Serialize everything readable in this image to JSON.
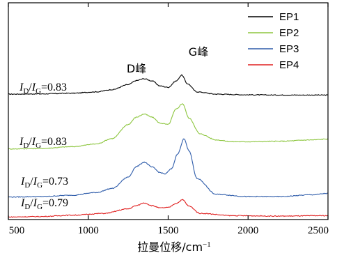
{
  "chart_data": {
    "type": "line",
    "xlabel": "拉曼位移/cm",
    "xlabel_sup": "−1",
    "ylabel": "",
    "xlim": [
      500,
      2500
    ],
    "x_ticks": [
      500,
      1000,
      1500,
      2000,
      2500
    ],
    "y_ticks_shown": false,
    "legend_position": "top-right",
    "peaks": [
      {
        "label": "D峰",
        "x": 1350
      },
      {
        "label": "G峰",
        "x": 1585
      }
    ],
    "series": [
      {
        "name": "EP1",
        "color": "#000000",
        "ratio_label": {
          "i": "I",
          "d": "D",
          "slash": "/",
          "g": "G",
          "value": "=0.83"
        },
        "points": [
          [
            500,
            0.03
          ],
          [
            700,
            0.035
          ],
          [
            900,
            0.05
          ],
          [
            1050,
            0.08
          ],
          [
            1150,
            0.13
          ],
          [
            1250,
            0.24
          ],
          [
            1300,
            0.33
          ],
          [
            1350,
            0.37
          ],
          [
            1400,
            0.32
          ],
          [
            1450,
            0.21
          ],
          [
            1500,
            0.18
          ],
          [
            1550,
            0.32
          ],
          [
            1585,
            0.45
          ],
          [
            1620,
            0.26
          ],
          [
            1680,
            0.08
          ],
          [
            1800,
            0.03
          ],
          [
            2000,
            0.015
          ],
          [
            2200,
            0.01
          ],
          [
            2500,
            0.01
          ]
        ]
      },
      {
        "name": "EP2",
        "color": "#8dc63f",
        "ratio_label": {
          "i": "I",
          "d": "D",
          "slash": "/",
          "g": "G",
          "value": "=0.83"
        },
        "points": [
          [
            500,
            0.02
          ],
          [
            700,
            0.03
          ],
          [
            900,
            0.07
          ],
          [
            1050,
            0.13
          ],
          [
            1150,
            0.25
          ],
          [
            1250,
            0.56
          ],
          [
            1300,
            0.72
          ],
          [
            1350,
            0.79
          ],
          [
            1400,
            0.72
          ],
          [
            1450,
            0.59
          ],
          [
            1500,
            0.56
          ],
          [
            1550,
            0.9
          ],
          [
            1590,
            1.02
          ],
          [
            1630,
            0.7
          ],
          [
            1700,
            0.35
          ],
          [
            1800,
            0.22
          ],
          [
            1900,
            0.18
          ],
          [
            2000,
            0.18
          ],
          [
            2200,
            0.19
          ],
          [
            2400,
            0.22
          ],
          [
            2500,
            0.24
          ]
        ]
      },
      {
        "name": "EP3",
        "color": "#2e5caa",
        "ratio_label": {
          "i": "I",
          "d": "D",
          "slash": "/",
          "g": "G",
          "value": "=0.73"
        },
        "points": [
          [
            500,
            0.02
          ],
          [
            700,
            0.03
          ],
          [
            900,
            0.06
          ],
          [
            1050,
            0.12
          ],
          [
            1150,
            0.21
          ],
          [
            1250,
            0.46
          ],
          [
            1300,
            0.69
          ],
          [
            1350,
            0.79
          ],
          [
            1400,
            0.68
          ],
          [
            1450,
            0.56
          ],
          [
            1480,
            0.53
          ],
          [
            1520,
            0.64
          ],
          [
            1560,
            0.98
          ],
          [
            1600,
            1.31
          ],
          [
            1630,
            1.04
          ],
          [
            1680,
            0.43
          ],
          [
            1800,
            0.08
          ],
          [
            2000,
            0.03
          ],
          [
            2200,
            0.03
          ],
          [
            2400,
            0.07
          ],
          [
            2500,
            0.1
          ]
        ]
      },
      {
        "name": "EP4",
        "color": "#e02020",
        "ratio_label": {
          "i": "I",
          "d": "D",
          "slash": "/",
          "g": "G",
          "value": "=0.79"
        },
        "points": [
          [
            500,
            0.01
          ],
          [
            700,
            0.02
          ],
          [
            900,
            0.05
          ],
          [
            1100,
            0.09
          ],
          [
            1250,
            0.19
          ],
          [
            1300,
            0.26
          ],
          [
            1350,
            0.32
          ],
          [
            1400,
            0.26
          ],
          [
            1450,
            0.21
          ],
          [
            1500,
            0.22
          ],
          [
            1550,
            0.31
          ],
          [
            1590,
            0.39
          ],
          [
            1630,
            0.25
          ],
          [
            1700,
            0.09
          ],
          [
            1900,
            0.04
          ],
          [
            2200,
            0.03
          ],
          [
            2500,
            0.04
          ]
        ]
      }
    ]
  }
}
